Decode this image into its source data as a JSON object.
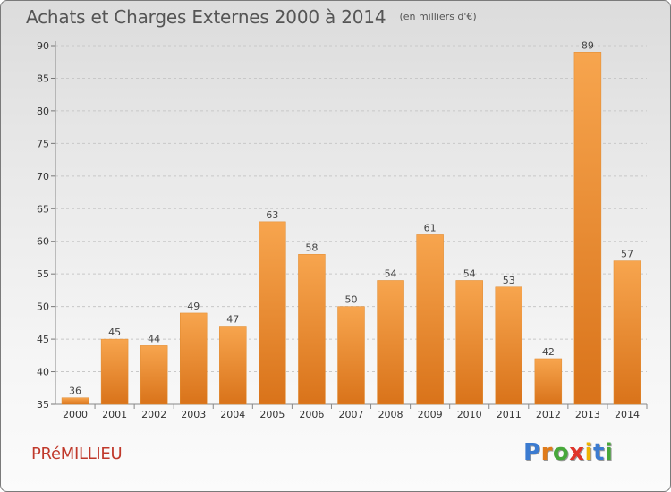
{
  "page": {
    "title": "Achats et Charges Externes 2000 à 2014",
    "unit_note": "(en milliers d'€)",
    "commune": "PRéMILLIEU",
    "logo": {
      "text": "Proxiti",
      "letter_colors": [
        "#3b7bd0",
        "#e07b1a",
        "#47a83a",
        "#e0342a",
        "#f0b400",
        "#3b7bd0",
        "#47a83a"
      ]
    }
  },
  "chart_data": {
    "type": "bar",
    "title": "Achats et Charges Externes 2000 à 2014",
    "subtitle": "(en milliers d'€)",
    "categories": [
      "2000",
      "2001",
      "2002",
      "2003",
      "2004",
      "2005",
      "2006",
      "2007",
      "2008",
      "2009",
      "2010",
      "2011",
      "2012",
      "2013",
      "2014"
    ],
    "values": [
      36,
      45,
      44,
      49,
      47,
      63,
      58,
      50,
      54,
      61,
      54,
      53,
      42,
      89,
      57
    ],
    "ylim": [
      35,
      90
    ],
    "yticks": [
      35,
      40,
      45,
      50,
      55,
      60,
      65,
      70,
      75,
      80,
      85,
      90
    ],
    "grid": "horizontal-dashed",
    "bar_color_light": "#f7a54e",
    "bar_color_dark": "#d9731a"
  }
}
